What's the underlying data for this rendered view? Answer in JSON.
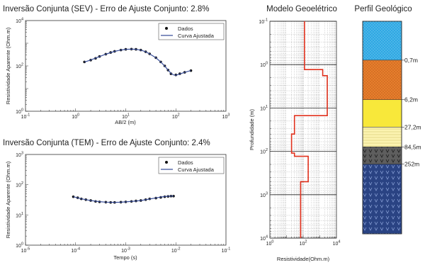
{
  "colors": {
    "data_point": "#111111",
    "fit_curve": "#3a4f9a",
    "model_line": "#e0301c",
    "layer_1": "#2ea8e3",
    "layer_2": "#e87e2c",
    "layer_3": "#f8e83a",
    "layer_4": "#fbf3b0",
    "layer_5": "#5e5e5e",
    "layer_6": "#2a4383"
  },
  "chart_data": [
    {
      "id": "sev",
      "type": "line",
      "title": "Inversão Conjunta (SEV) - Erro de Ajuste Conjunto: 2.8%",
      "xlabel": "AB/2 (m)",
      "ylabel": "Resistividade Aparente (Ohm.m)",
      "x_scale": "log",
      "y_scale": "log",
      "xlim": [
        0.1,
        1000
      ],
      "ylim": [
        1,
        10000
      ],
      "x_ticks": [
        {
          "exp": -1
        },
        {
          "exp": 0
        },
        {
          "exp": 1
        },
        {
          "exp": 2
        },
        {
          "exp": 3
        }
      ],
      "y_ticks": [
        {
          "exp": 0
        },
        {
          "exp": 2
        },
        {
          "exp": 4
        }
      ],
      "legend": {
        "position": "top-right",
        "entries": [
          "Dados",
          "Curva Ajustada"
        ]
      },
      "series": [
        {
          "name": "Dados",
          "style": "points",
          "x": [
            1.5,
            2,
            2.5,
            3,
            4,
            5,
            6,
            8,
            10,
            13,
            16,
            20,
            25,
            30,
            40,
            50,
            60,
            70,
            80,
            100,
            120,
            150,
            200
          ],
          "y": [
            150,
            180,
            215,
            260,
            330,
            390,
            440,
            500,
            540,
            550,
            540,
            500,
            420,
            340,
            230,
            150,
            100,
            65,
            45,
            40,
            45,
            52,
            62
          ]
        },
        {
          "name": "Curva Ajustada",
          "style": "line",
          "x": [
            1.5,
            2,
            3,
            4,
            6,
            8,
            10,
            13,
            16,
            20,
            25,
            30,
            40,
            50,
            60,
            70,
            80,
            90,
            100,
            120,
            150,
            200
          ],
          "y": [
            148,
            182,
            258,
            328,
            438,
            502,
            538,
            548,
            538,
            498,
            418,
            338,
            228,
            148,
            98,
            66,
            47,
            40,
            39,
            44,
            52,
            62
          ]
        }
      ]
    },
    {
      "id": "tem",
      "type": "line",
      "title": "Inversão Conjunta (TEM) - Erro de Ajuste Conjunto: 2.4%",
      "xlabel": "Tempo (s)",
      "ylabel": "Resistividade Aparente (Ohm.m)",
      "x_scale": "log",
      "y_scale": "log",
      "xlim": [
        1e-05,
        0.1
      ],
      "ylim": [
        1,
        1000
      ],
      "x_ticks": [
        {
          "exp": -5
        },
        {
          "exp": -4
        },
        {
          "exp": -3
        },
        {
          "exp": -2
        },
        {
          "exp": -1
        }
      ],
      "y_ticks": [
        {
          "exp": 0
        },
        {
          "exp": 1
        },
        {
          "exp": 2
        },
        {
          "exp": 3
        }
      ],
      "legend": {
        "position": "top-right",
        "entries": [
          "Dados",
          "Curva Ajustada"
        ]
      },
      "series": [
        {
          "name": "Dados",
          "style": "points",
          "x": [
            9e-05,
            0.00011,
            0.00013,
            0.00016,
            0.0002,
            0.00025,
            0.0003,
            0.0004,
            0.0005,
            0.0006,
            0.0008,
            0.001,
            0.0013,
            0.0016,
            0.002,
            0.0025,
            0.003,
            0.004,
            0.005,
            0.006,
            0.007,
            0.008,
            0.009
          ],
          "y": [
            40,
            37,
            34,
            32,
            30,
            28,
            27,
            26.5,
            26,
            26,
            26.5,
            27,
            28,
            29,
            30,
            32,
            34,
            36,
            38,
            40,
            41,
            42,
            42
          ]
        },
        {
          "name": "Curva Ajustada",
          "style": "line",
          "x": [
            9e-05,
            0.00012,
            0.00016,
            0.0002,
            0.0003,
            0.0004,
            0.0006,
            0.0008,
            0.001,
            0.0015,
            0.002,
            0.003,
            0.004,
            0.005,
            0.006,
            0.007,
            0.008,
            0.009
          ],
          "y": [
            40,
            35,
            32,
            30,
            27.5,
            26.5,
            26,
            26.3,
            27,
            28.5,
            30,
            33.5,
            36.5,
            39,
            40.5,
            41.5,
            42,
            42.3
          ]
        }
      ]
    },
    {
      "id": "model",
      "type": "line",
      "title": "Modelo Geoelétrico",
      "xlabel": "Resistividade(Ohm.m)",
      "ylabel": "Profundidade (m)",
      "x_scale": "log",
      "y_scale": "log",
      "y_inverted": true,
      "xlim": [
        1,
        10000
      ],
      "ylim": [
        0.1,
        10000
      ],
      "x_ticks": [
        {
          "exp": 0
        },
        {
          "exp": 2
        },
        {
          "exp": 4
        }
      ],
      "y_ticks": [
        {
          "exp": -1
        },
        {
          "exp": 0
        },
        {
          "exp": 1
        },
        {
          "exp": 2
        },
        {
          "exp": 3
        },
        {
          "exp": 4
        }
      ],
      "series": [
        {
          "name": "",
          "style": "step",
          "x": [
            120,
            120,
            1500,
            1500,
            2800,
            2800,
            30,
            30,
            20,
            20,
            30,
            30,
            200,
            200,
            70,
            70
          ],
          "y": [
            0.1,
            1.3,
            1.3,
            1.8,
            1.8,
            15,
            15,
            40,
            40,
            110,
            110,
            130,
            130,
            500,
            500,
            10000
          ]
        }
      ]
    }
  ],
  "geo_profile": {
    "title": "Perfil Geológico",
    "layers": [
      {
        "color_key": "layer_1",
        "pattern": "dots-light",
        "fraction": 0.183
      },
      {
        "color_key": "layer_2",
        "pattern": "dots-dark",
        "fraction": 0.186
      },
      {
        "color_key": "layer_3",
        "pattern": "none",
        "fraction": 0.129
      },
      {
        "color_key": "layer_4",
        "pattern": "hatch",
        "fraction": 0.093
      },
      {
        "color_key": "layer_5",
        "pattern": "v",
        "fraction": 0.081
      },
      {
        "color_key": "layer_6",
        "pattern": "v-blue",
        "fraction": 0.328
      }
    ],
    "depth_labels": [
      "0,7m",
      "6,2m",
      "27,2m",
      "84,5m",
      "252m"
    ]
  }
}
